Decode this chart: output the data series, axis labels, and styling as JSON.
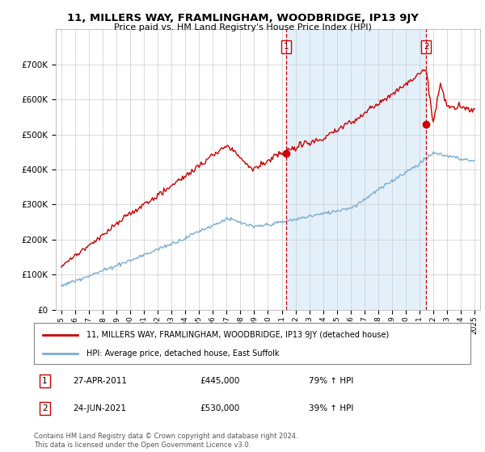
{
  "title": "11, MILLERS WAY, FRAMLINGHAM, WOODBRIDGE, IP13 9JY",
  "subtitle": "Price paid vs. HM Land Registry's House Price Index (HPI)",
  "legend_line1": "11, MILLERS WAY, FRAMLINGHAM, WOODBRIDGE, IP13 9JY (detached house)",
  "legend_line2": "HPI: Average price, detached house, East Suffolk",
  "sale1_date": "27-APR-2011",
  "sale1_price": "£445,000",
  "sale1_hpi": "79% ↑ HPI",
  "sale2_date": "24-JUN-2021",
  "sale2_price": "£530,000",
  "sale2_hpi": "39% ↑ HPI",
  "footer": "Contains HM Land Registry data © Crown copyright and database right 2024.\nThis data is licensed under the Open Government Licence v3.0.",
  "red_color": "#cc0000",
  "blue_color": "#7aadd4",
  "blue_fill": "#ddeeff",
  "background_color": "#ffffff",
  "grid_color": "#cccccc",
  "ylim": [
    0,
    800000
  ],
  "yticks": [
    0,
    100000,
    200000,
    300000,
    400000,
    500000,
    600000,
    700000
  ],
  "ytick_labels": [
    "£0",
    "£100K",
    "£200K",
    "£300K",
    "£400K",
    "£500K",
    "£600K",
    "£700K"
  ],
  "sale1_year": 2011.32,
  "sale1_value": 445000,
  "sale2_year": 2021.48,
  "sale2_value": 530000,
  "vline_color": "#cc0000",
  "xmin": 1995,
  "xmax": 2025
}
